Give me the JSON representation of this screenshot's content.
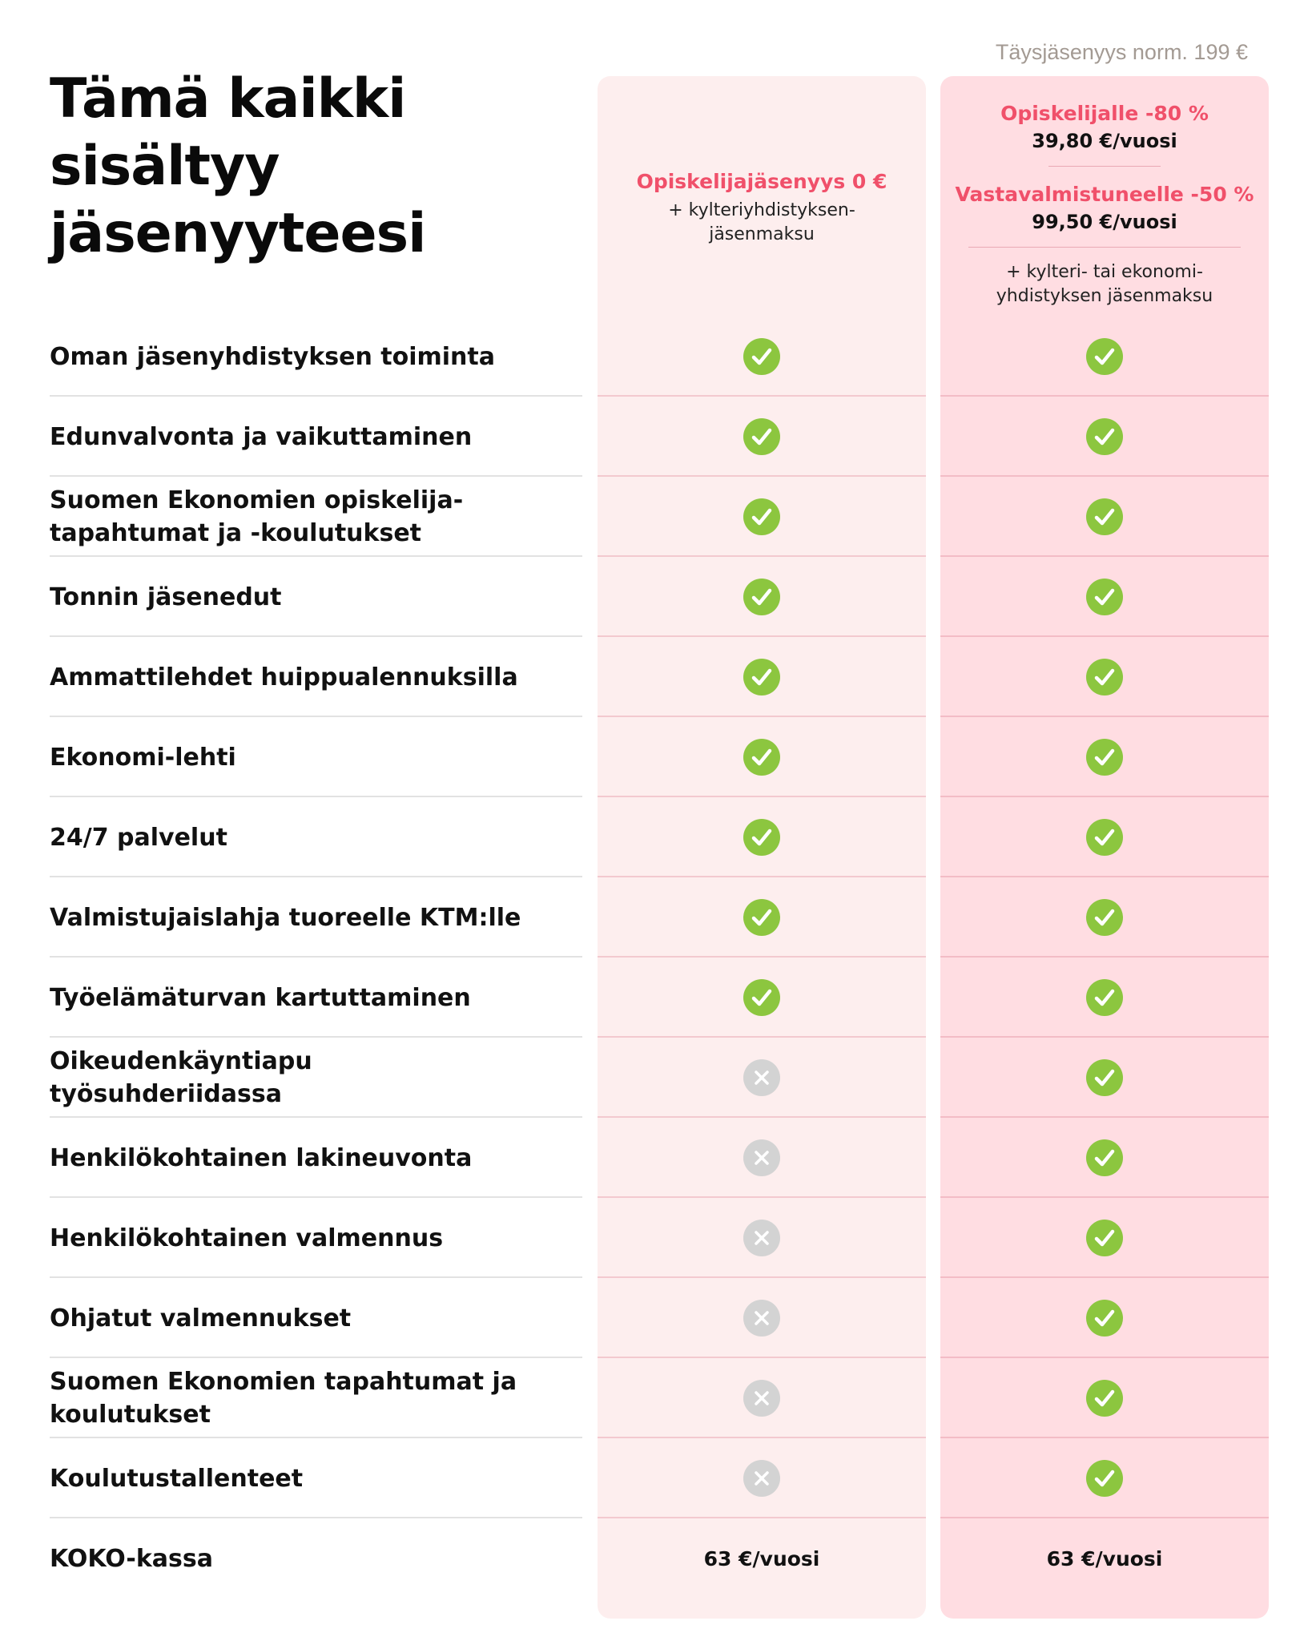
{
  "note": "Täysjäsenyys norm. 199 €",
  "title": "Tämä kaikki sisältyy jäsenyyteesi",
  "columns": {
    "student": {
      "name": "Opiskelijajäsenyys 0 €",
      "fee_note": "+ kylteriyhdistyksen-jäsenmaksu"
    },
    "discount": {
      "offer1": "Opiskelijalle -80 %",
      "price1": "39,80 €/vuosi",
      "offer2": "Vastavalmistuneelle -50 %",
      "price2": "99,50 €/vuosi",
      "fee_note": "+ kylteri- tai ekonomi-yhdistyksen jäsenmaksu"
    }
  },
  "icon_colors": {
    "check": "#8cc63f",
    "cross": "#d3d3d3",
    "accent": "#f0506a"
  },
  "rows": [
    {
      "label": "Oman jäsenyhdistyksen toiminta",
      "student": "check-icon",
      "discount": "check-icon"
    },
    {
      "label": "Edunvalvonta ja vaikuttaminen",
      "student": "check-icon",
      "discount": "check-icon"
    },
    {
      "label": "Suomen Ekonomien opiskelija-tapahtumat ja -koulutukset",
      "student": "check-icon",
      "discount": "check-icon"
    },
    {
      "label": "Tonnin jäsenedut",
      "student": "check-icon",
      "discount": "check-icon"
    },
    {
      "label": "Ammattilehdet huippualennuksilla",
      "student": "check-icon",
      "discount": "check-icon"
    },
    {
      "label": "Ekonomi-lehti",
      "student": "check-icon",
      "discount": "check-icon"
    },
    {
      "label": "24/7 palvelut",
      "student": "check-icon",
      "discount": "check-icon"
    },
    {
      "label": "Valmistujaislahja tuoreelle KTM:lle",
      "student": "check-icon",
      "discount": "check-icon"
    },
    {
      "label": "Työelämäturvan kartuttaminen",
      "student": "check-icon",
      "discount": "check-icon"
    },
    {
      "label": "Oikeudenkäyntiapu työsuhderiidassa",
      "student": "cross-icon",
      "discount": "check-icon"
    },
    {
      "label": "Henkilökohtainen lakineuvonta",
      "student": "cross-icon",
      "discount": "check-icon"
    },
    {
      "label": "Henkilökohtainen valmennus",
      "student": "cross-icon",
      "discount": "check-icon"
    },
    {
      "label": "Ohjatut valmennukset",
      "student": "cross-icon",
      "discount": "check-icon"
    },
    {
      "label": "Suomen Ekonomien tapahtumat ja koulutukset",
      "student": "cross-icon",
      "discount": "check-icon"
    },
    {
      "label": "Koulutustallenteet",
      "student": "cross-icon",
      "discount": "check-icon"
    },
    {
      "label": "KOKO-kassa",
      "student": "63 €/vuosi",
      "discount": "63 €/vuosi"
    }
  ]
}
